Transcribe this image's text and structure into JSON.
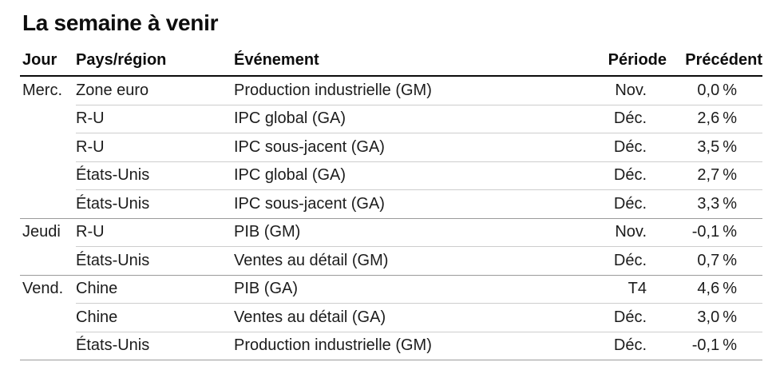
{
  "title": "La semaine à venir",
  "colors": {
    "text": "#1c1c1c",
    "header_rule": "#0b0b0b",
    "row_rule_light": "#cdcdcd",
    "row_rule_group": "#9b9b9b",
    "background": "#ffffff"
  },
  "table": {
    "columns": [
      "Jour",
      "Pays/région",
      "Événement",
      "Période",
      "Précédent"
    ],
    "rows": [
      {
        "jour": "Merc.",
        "pays": "Zone euro",
        "evenement": "Production industrielle (GM)",
        "periode": "Nov.",
        "precedent": "0,0 %",
        "sep": "light"
      },
      {
        "jour": "",
        "pays": "R-U",
        "evenement": "IPC global (GA)",
        "periode": "Déc.",
        "precedent": "2,6 %",
        "sep": "light"
      },
      {
        "jour": "",
        "pays": "R-U",
        "evenement": "IPC sous-jacent (GA)",
        "periode": "Déc.",
        "precedent": "3,5 %",
        "sep": "light"
      },
      {
        "jour": "",
        "pays": "États-Unis",
        "evenement": "IPC global (GA)",
        "periode": "Déc.",
        "precedent": "2,7 %",
        "sep": "light"
      },
      {
        "jour": "",
        "pays": "États-Unis",
        "evenement": "IPC sous-jacent (GA)",
        "periode": "Déc.",
        "precedent": "3,3 %",
        "sep": "group"
      },
      {
        "jour": "Jeudi",
        "pays": "R-U",
        "evenement": "PIB (GM)",
        "periode": "Nov.",
        "precedent": "-0,1 %",
        "sep": "light"
      },
      {
        "jour": "",
        "pays": "États-Unis",
        "evenement": "Ventes au détail (GM)",
        "periode": "Déc.",
        "precedent": "0,7 %",
        "sep": "group"
      },
      {
        "jour": "Vend.",
        "pays": "Chine",
        "evenement": "PIB (GA)",
        "periode": "T4",
        "precedent": "4,6 %",
        "sep": "light"
      },
      {
        "jour": "",
        "pays": "Chine",
        "evenement": "Ventes au détail (GA)",
        "periode": "Déc.",
        "precedent": "3,0 %",
        "sep": "light"
      },
      {
        "jour": "",
        "pays": "États-Unis",
        "evenement": "Production industrielle (GM)",
        "periode": "Déc.",
        "precedent": "-0,1 %",
        "sep": "group"
      }
    ]
  }
}
